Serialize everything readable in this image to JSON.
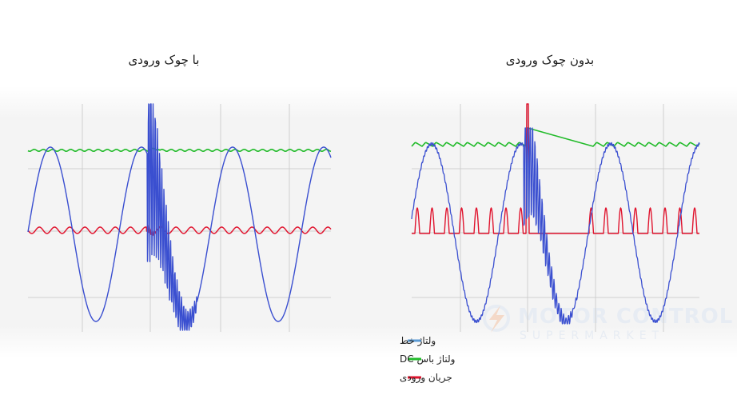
{
  "colors": {
    "line_voltage": "#3a4fd0",
    "dc_bus": "#22bb2a",
    "input_current": "#e0142e",
    "legend_blue": "#5b9bd5",
    "grid": "#cfcfcf",
    "watermark": "#e6ebf2"
  },
  "watermark": {
    "line1": "MOTOR CONTROL",
    "line2": "SUPERMARKET"
  },
  "chart_data": [
    {
      "type": "line",
      "title": "با چوک ورودی",
      "series": [
        {
          "name": "ولتاژ خط",
          "shape": "sine",
          "periods": 2.35,
          "transient": "ringing"
        },
        {
          "name": "ولتاژ باس DC",
          "shape": "flat-with-small-ripple"
        },
        {
          "name": "جریان ورودی",
          "shape": "continuous-small-ripple"
        }
      ],
      "grid": true
    },
    {
      "type": "line",
      "title": "بدون چوک ورودی",
      "series": [
        {
          "name": "ولتاژ خط",
          "shape": "sine",
          "periods": 2.35,
          "transient": "ringing"
        },
        {
          "name": "ولتاژ باس DC",
          "shape": "sawtooth-ripple",
          "transient": "overvoltage-decay"
        },
        {
          "name": "جریان ورودی",
          "shape": "narrow-pulses",
          "transient": "spike-then-zero"
        }
      ],
      "grid": true
    }
  ],
  "legend": [
    {
      "label": "ولتاژ خط",
      "color": "#5b9bd5"
    },
    {
      "label": "ولتاژ باس DC",
      "color": "#22bb2a"
    },
    {
      "label": "جریان ورودی",
      "color": "#e0142e"
    }
  ]
}
